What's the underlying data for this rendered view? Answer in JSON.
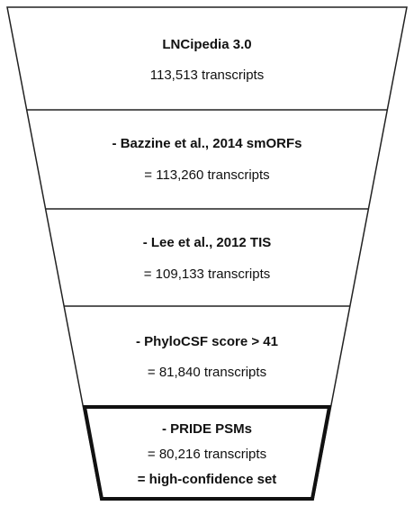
{
  "stages": [
    {
      "title": "LNCipedia 3.0",
      "text": "113,513 transcripts"
    },
    {
      "title": "- Bazzine et al., 2014 smORFs",
      "text": "= 113,260 transcripts"
    },
    {
      "title": "- Lee et al., 2012 TIS",
      "text": "= 109,133 transcripts"
    },
    {
      "title": "- PhyloCSF score > 41",
      "text": "= 81,840 transcripts"
    },
    {
      "title": "- PRIDE PSMs",
      "text": "= 80,216 transcripts",
      "note": "= high-confidence set"
    }
  ]
}
